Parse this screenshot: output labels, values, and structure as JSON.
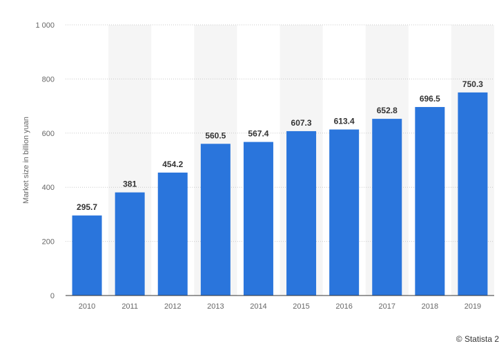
{
  "credit": "© Statista 2",
  "colors": {
    "bar": "#2a75dc",
    "band": "#f5f5f5",
    "grid": "#c8c8c8",
    "axis": "#333333"
  },
  "chart_data": {
    "type": "bar",
    "categories": [
      "2010",
      "2011",
      "2012",
      "2013",
      "2014",
      "2015",
      "2016",
      "2017",
      "2018",
      "2019"
    ],
    "values": [
      295.7,
      381,
      454.2,
      560.5,
      567.4,
      607.3,
      613.4,
      652.8,
      696.5,
      750.3
    ],
    "value_labels": [
      "295.7",
      "381",
      "454.2",
      "560.5",
      "567.4",
      "607.3",
      "613.4",
      "652.8",
      "696.5",
      "750.3"
    ],
    "ylabel": "Market size in billion yuan",
    "xlabel": "",
    "ylim": [
      0,
      1000
    ],
    "yticks": [
      0,
      200,
      400,
      600,
      800,
      1000
    ],
    "ytick_labels": [
      "0",
      "200",
      "400",
      "600",
      "800",
      "1 000"
    ],
    "grid": true,
    "alternating_bands": true
  }
}
